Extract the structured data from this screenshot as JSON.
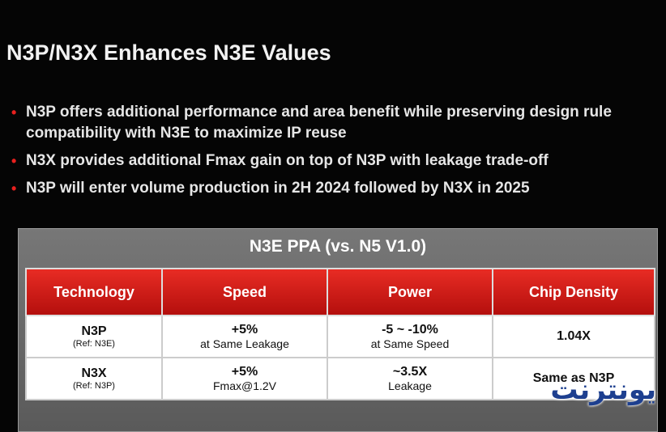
{
  "header": {
    "title": "N3P/N3X Enhances N3E Values"
  },
  "bullets": [
    "N3P offers additional performance and area benefit while preserving design rule compatibility with N3E to maximize IP reuse",
    "N3X provides additional Fmax gain on top of N3P with leakage trade-off",
    "N3P will enter volume production in 2H 2024 followed by N3X in 2025"
  ],
  "table": {
    "caption": "N3E PPA (vs. N5 V1.0)",
    "columns": [
      "Technology",
      "Speed",
      "Power",
      "Chip Density"
    ],
    "rows": [
      [
        {
          "main": "N3P",
          "sub": "(Ref: N3E)"
        },
        {
          "main": "+5%",
          "sub": "at Same Leakage"
        },
        {
          "main": "-5 ~ -10%",
          "sub": "at Same Speed"
        },
        {
          "main": "1.04X"
        }
      ],
      [
        {
          "main": "N3X",
          "sub": "(Ref: N3P)"
        },
        {
          "main": "+5%",
          "sub": "Fmax@1.2V"
        },
        {
          "main": "~3.5X",
          "sub": "Leakage"
        },
        {
          "main": "Same as N3P"
        }
      ]
    ]
  },
  "watermark": "یونترنت"
}
